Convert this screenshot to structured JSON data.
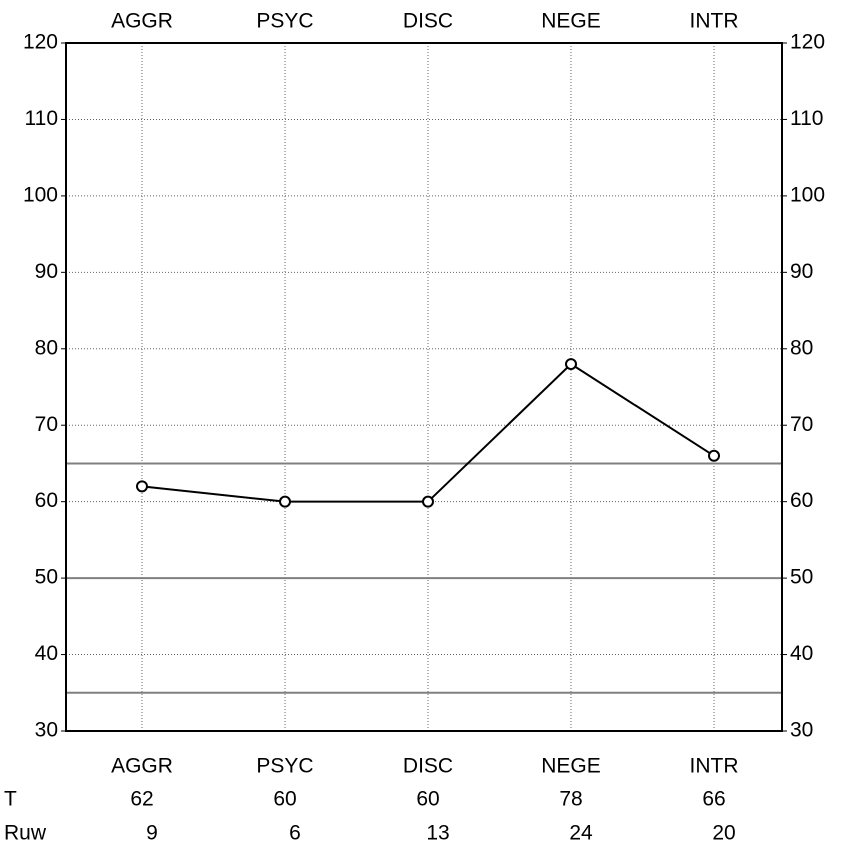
{
  "chart_data": {
    "type": "line",
    "categories": [
      "AGGR",
      "PSYC",
      "DISC",
      "NEGE",
      "INTR"
    ],
    "series": [
      {
        "name": "T",
        "color": "#000000",
        "values": [
          62,
          60,
          60,
          78,
          66
        ]
      }
    ],
    "raw_scores": {
      "name": "Ruw",
      "values": [
        9,
        6,
        13,
        24,
        20
      ]
    },
    "ylim": [
      30,
      120
    ],
    "yticks": [
      30,
      40,
      50,
      60,
      70,
      80,
      90,
      100,
      110,
      120
    ],
    "y2lim": [
      30,
      120
    ],
    "y2ticks": [
      30,
      40,
      50,
      60,
      70,
      80,
      90,
      100,
      110,
      120
    ],
    "reference_lines": [
      35,
      50,
      65
    ],
    "reference_color": "#808080",
    "grid": true
  }
}
